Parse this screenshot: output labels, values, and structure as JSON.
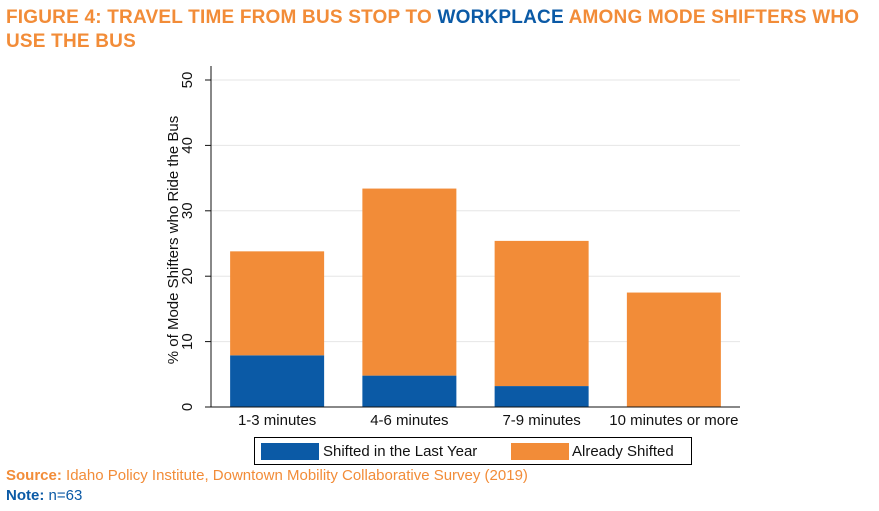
{
  "title": {
    "part1": "FIGURE 4: TRAVEL TIME FROM BUS STOP TO ",
    "highlight": "WORKPLACE",
    "part2": " AMONG MODE SHIFTERS WHO USE THE BUS"
  },
  "colors": {
    "shifted_last_year": "#0b5aa6",
    "already_shifted": "#f28c38",
    "title_orange": "#f28c38",
    "title_blue": "#0b5aa6"
  },
  "chart_data": {
    "type": "bar",
    "stacked": true,
    "categories": [
      "1-3 minutes",
      "4-6 minutes",
      "7-9 minutes",
      "10 minutes or more"
    ],
    "series": [
      {
        "name": "Shifted in the Last Year",
        "values": [
          7.9,
          4.8,
          3.2,
          0
        ]
      },
      {
        "name": "Already Shifted",
        "values": [
          15.9,
          28.6,
          22.2,
          17.5
        ]
      }
    ],
    "ylabel": "% of Mode Shifters who Ride the Bus",
    "ylim": [
      0,
      50
    ],
    "yticks": [
      0,
      10,
      20,
      30,
      40,
      50
    ],
    "grid": true,
    "legend_position": "bottom"
  },
  "footer": {
    "source_label": "Source:",
    "source_text": " Idaho Policy Institute, Downtown Mobility Collaborative Survey (2019)",
    "note_label": "Note:",
    "note_text": " n=63"
  }
}
